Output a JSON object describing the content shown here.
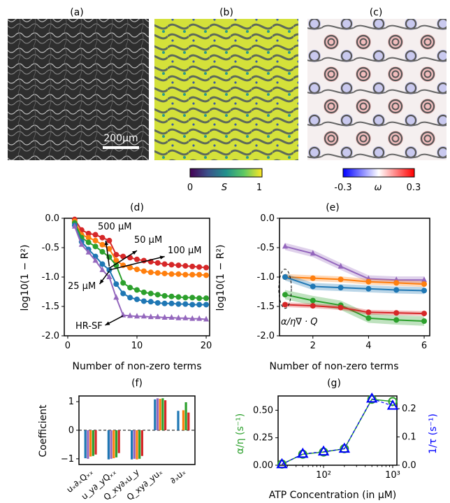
{
  "panels": {
    "a": {
      "label": "(a)",
      "scalebar": "200μm"
    },
    "b": {
      "label": "(b)",
      "colorbar_min": "0",
      "colorbar_max": "1",
      "colorbar_symbol": "S"
    },
    "c": {
      "label": "(c)",
      "colorbar_min": "-0.3",
      "colorbar_max": "0.3",
      "colorbar_symbol": "ω"
    }
  },
  "colors": {
    "blue": "#1f77b4",
    "orange": "#ff7f0e",
    "green": "#2ca02c",
    "red": "#d62728",
    "purple": "#9467bd",
    "gray": "#bdbdbd"
  },
  "chart_data": [
    {
      "id": "d",
      "type": "line",
      "panel_label": "(d)",
      "xlabel": "Number of non-zero terms",
      "ylabel": "log10(1 − R²)",
      "xlim": [
        -0.5,
        20.5
      ],
      "ylim": [
        -2.0,
        0.0
      ],
      "xticks": [
        "0",
        "10",
        "20"
      ],
      "yticks": [
        "0.0",
        "-0.5",
        "-1.0",
        "-1.5",
        "-2.0"
      ],
      "x": [
        1,
        2,
        3,
        4,
        5,
        6,
        7,
        8,
        9,
        10,
        11,
        12,
        13,
        14,
        15,
        16,
        17,
        18,
        19,
        20
      ],
      "series": [
        {
          "color": "red",
          "marker": "circle",
          "values": [
            -0.02,
            -0.2,
            -0.26,
            -0.28,
            -0.33,
            -0.38,
            -0.62,
            -0.65,
            -0.67,
            -0.7,
            -0.72,
            -0.74,
            -0.76,
            -0.78,
            -0.79,
            -0.8,
            -0.81,
            -0.82,
            -0.83,
            -0.84
          ]
        },
        {
          "color": "orange",
          "marker": "circle",
          "values": [
            -0.05,
            -0.28,
            -0.33,
            -0.38,
            -0.45,
            -0.52,
            -0.72,
            -0.8,
            -0.84,
            -0.87,
            -0.9,
            -0.92,
            -0.93,
            -0.94,
            -0.95,
            -0.95,
            -0.96,
            -0.96,
            -0.96,
            -0.97
          ]
        },
        {
          "color": "green",
          "marker": "circle",
          "values": [
            -0.08,
            -0.33,
            -0.41,
            -0.48,
            -0.57,
            -0.66,
            -0.8,
            -1.1,
            -1.18,
            -1.22,
            -1.26,
            -1.28,
            -1.3,
            -1.32,
            -1.33,
            -1.34,
            -1.35,
            -1.35,
            -1.36,
            -1.36
          ]
        },
        {
          "color": "blue",
          "marker": "circle",
          "values": [
            -0.12,
            -0.4,
            -0.53,
            -0.65,
            -0.78,
            -0.88,
            -1.12,
            -1.28,
            -1.35,
            -1.38,
            -1.41,
            -1.42,
            -1.44,
            -1.45,
            -1.45,
            -1.46,
            -1.46,
            -1.47,
            -1.47,
            -1.47
          ]
        },
        {
          "color": "purple",
          "marker": "triangle",
          "values": [
            -0.14,
            -0.45,
            -0.58,
            -0.72,
            -0.88,
            -1.0,
            -1.35,
            -1.65,
            -1.66,
            -1.67,
            -1.67,
            -1.68,
            -1.68,
            -1.69,
            -1.69,
            -1.7,
            -1.7,
            -1.71,
            -1.71,
            -1.72
          ]
        }
      ],
      "annotations": [
        "500 μM",
        "50 μM",
        "100 μM",
        "25 μM",
        "HR-SF"
      ]
    },
    {
      "id": "e",
      "type": "line",
      "panel_label": "(e)",
      "xlabel": "Number of non-zero terms",
      "ylabel": "log10(1 − R²)",
      "xlim": [
        0.8,
        6.2
      ],
      "ylim": [
        -2.0,
        0.0
      ],
      "xticks": [
        "2",
        "4",
        "6"
      ],
      "yticks": [
        "0.0",
        "-0.5",
        "-1.0",
        "-1.5",
        "-2.0"
      ],
      "x": [
        1,
        2,
        3,
        4,
        5,
        6
      ],
      "series": [
        {
          "color": "purple",
          "marker": "triangle",
          "values": [
            -0.48,
            -0.6,
            -0.82,
            -1.03,
            -1.05,
            -1.05
          ],
          "band": 0.06
        },
        {
          "color": "orange",
          "marker": "circle",
          "values": [
            -1.0,
            -1.02,
            -1.04,
            -1.08,
            -1.1,
            -1.12
          ],
          "band": 0.05
        },
        {
          "color": "blue",
          "marker": "circle",
          "values": [
            -1.0,
            -1.16,
            -1.18,
            -1.2,
            -1.22,
            -1.23
          ],
          "band": 0.06
        },
        {
          "color": "green",
          "marker": "circle",
          "values": [
            -1.3,
            -1.4,
            -1.48,
            -1.7,
            -1.73,
            -1.75
          ],
          "band": 0.08
        },
        {
          "color": "red",
          "marker": "circle",
          "values": [
            -1.47,
            -1.49,
            -1.52,
            -1.6,
            -1.61,
            -1.62
          ],
          "band": 0.04
        }
      ],
      "annotation": "α/η∇ · Q"
    },
    {
      "id": "f",
      "type": "bar",
      "panel_label": "(f)",
      "ylabel": "Coefficient",
      "ylim": [
        -1.2,
        1.2
      ],
      "yticks": [
        "1",
        "0",
        "−1"
      ],
      "categories": [
        "uₓ∂ₓQₓₓ",
        "u_y∂_yQₓₓ",
        "Q_xy∂ₓu_y",
        "Q_xy∂_yuₓ",
        "∂ₓuₓ"
      ],
      "series": [
        {
          "color": "blue",
          "values": [
            -0.98,
            -1.02,
            -1.02,
            1.08,
            0.68
          ]
        },
        {
          "color": "purple",
          "values": [
            -1.0,
            -1.0,
            -1.0,
            1.12,
            0.0
          ]
        },
        {
          "color": "orange",
          "values": [
            -0.92,
            -0.98,
            -1.02,
            1.1,
            0.7
          ]
        },
        {
          "color": "green",
          "values": [
            -0.9,
            -0.95,
            -1.0,
            1.12,
            0.98
          ]
        },
        {
          "color": "red",
          "values": [
            -0.85,
            -0.8,
            -0.9,
            1.05,
            0.62
          ]
        }
      ]
    },
    {
      "id": "g",
      "type": "scatter",
      "panel_label": "(g)",
      "xlabel": "ATP Concentration (in μM)",
      "ylabel_left": "α/η (s⁻¹)",
      "ylabel_right": "1/τ (s⁻¹)",
      "xscale": "log",
      "xlim": [
        22,
        1150
      ],
      "ylim_left": [
        0.0,
        0.63
      ],
      "ylim_right": [
        0.0,
        0.245
      ],
      "yticks_left": [
        "0.00",
        "0.25",
        "0.50"
      ],
      "yticks_right": [
        "0.0",
        "0.1",
        "0.2"
      ],
      "x": [
        25,
        50,
        100,
        200,
        500,
        1000
      ],
      "alpha_eta": [
        0.01,
        0.1,
        0.12,
        0.15,
        0.6,
        0.58
      ],
      "inv_tau": [
        0.003,
        0.04,
        0.048,
        0.058,
        0.235,
        0.21
      ]
    }
  ]
}
